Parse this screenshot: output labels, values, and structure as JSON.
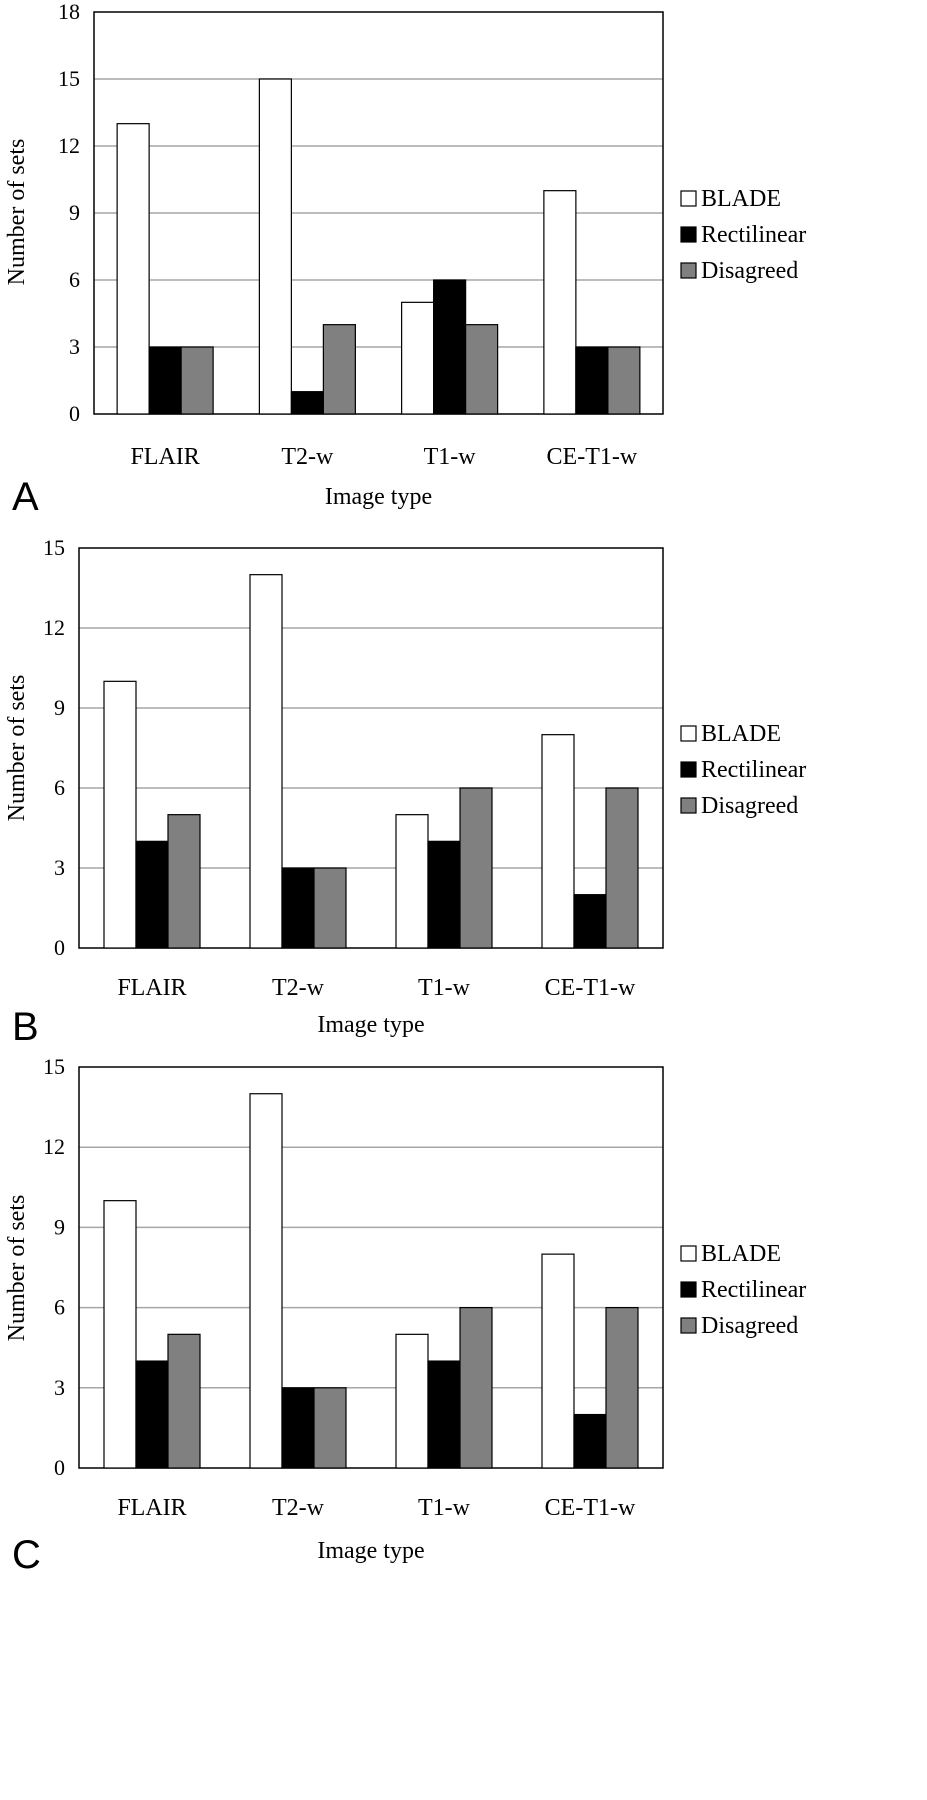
{
  "colors": {
    "BLADE": "#ffffff",
    "Rectilinear": "#000000",
    "Disagreed": "#808080",
    "grid": "#a6a6a6",
    "axis": "#000000"
  },
  "chart_data": [
    {
      "type": "bar",
      "panel_label": "A",
      "title": "",
      "xlabel": "Image type",
      "ylabel": "Number of sets",
      "ylim": [
        0,
        18
      ],
      "yticks": [
        0,
        3,
        6,
        9,
        12,
        15,
        18
      ],
      "categories": [
        "FLAIR",
        "T2-w",
        "T1-w",
        "CE-T1-w"
      ],
      "series": [
        {
          "name": "BLADE",
          "values": [
            13,
            15,
            5,
            10
          ]
        },
        {
          "name": "Rectilinear",
          "values": [
            3,
            1,
            6,
            3
          ]
        },
        {
          "name": "Disagreed",
          "values": [
            3,
            4,
            4,
            3
          ]
        }
      ],
      "legend": "right",
      "grid": true
    },
    {
      "type": "bar",
      "panel_label": "B",
      "title": "",
      "xlabel": "Image type",
      "ylabel": "Number of sets",
      "ylim": [
        0,
        15
      ],
      "yticks": [
        0,
        3,
        6,
        9,
        12,
        15
      ],
      "categories": [
        "FLAIR",
        "T2-w",
        "T1-w",
        "CE-T1-w"
      ],
      "series": [
        {
          "name": "BLADE",
          "values": [
            10,
            14,
            5,
            8
          ]
        },
        {
          "name": "Rectilinear",
          "values": [
            4,
            3,
            4,
            2
          ]
        },
        {
          "name": "Disagreed",
          "values": [
            5,
            3,
            6,
            6
          ]
        }
      ],
      "legend": "right",
      "grid": true
    },
    {
      "type": "bar",
      "panel_label": "C",
      "title": "",
      "xlabel": "Image type",
      "ylabel": "Number of sets",
      "ylim": [
        0,
        15
      ],
      "yticks": [
        0,
        3,
        6,
        9,
        12,
        15
      ],
      "categories": [
        "FLAIR",
        "T2-w",
        "T1-w",
        "CE-T1-w"
      ],
      "series": [
        {
          "name": "BLADE",
          "values": [
            10,
            14,
            5,
            8
          ]
        },
        {
          "name": "Rectilinear",
          "values": [
            4,
            3,
            4,
            2
          ]
        },
        {
          "name": "Disagreed",
          "values": [
            5,
            3,
            6,
            6
          ]
        }
      ],
      "legend": "right",
      "grid": true
    }
  ]
}
